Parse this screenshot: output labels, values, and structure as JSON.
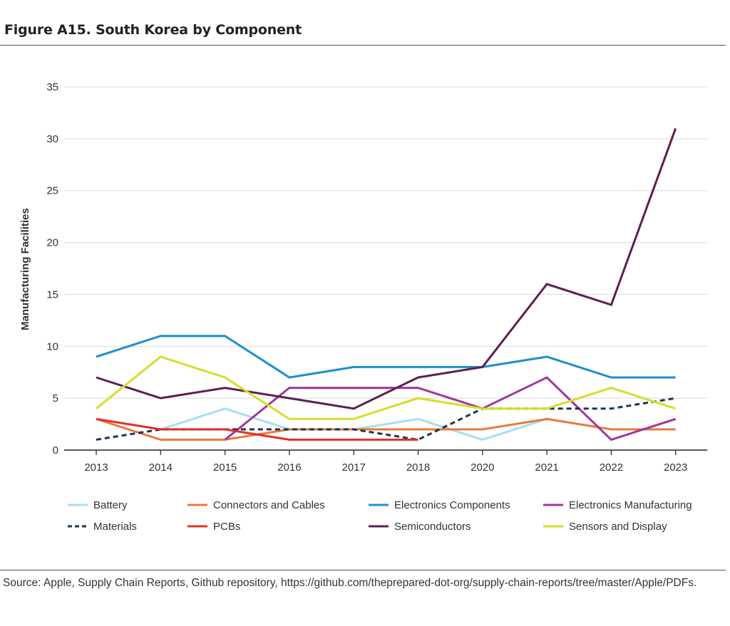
{
  "figure": {
    "title": "Figure A15. South Korea by Component",
    "source": "Source: Apple, Supply Chain Reports, Github repository, https://github.com/theprepared-dot-org/supply-chain-reports/tree/master/Apple/PDFs."
  },
  "chart_data": {
    "type": "line",
    "title": "Figure A15. South Korea by Component",
    "xlabel": "",
    "ylabel": "Manufacturing Facilities",
    "categories": [
      "2013",
      "2014",
      "2015",
      "2016",
      "2017",
      "2018",
      "2020",
      "2021",
      "2022",
      "2023"
    ],
    "yticks": [
      0,
      5,
      10,
      15,
      20,
      25,
      30,
      35
    ],
    "ylim": [
      0,
      35
    ],
    "grid": "horizontal",
    "legend_position": "bottom",
    "series": [
      {
        "name": "Battery",
        "color": "#a9dcf3",
        "dashed": false,
        "values": [
          3,
          2,
          4,
          2,
          2,
          3,
          1,
          3,
          null,
          null
        ]
      },
      {
        "name": "Connectors and Cables",
        "color": "#e87a3c",
        "dashed": false,
        "values": [
          3,
          1,
          1,
          2,
          2,
          2,
          2,
          3,
          2,
          2
        ]
      },
      {
        "name": "Electronics Components",
        "color": "#1c8fcf",
        "dashed": false,
        "values": [
          9,
          11,
          11,
          7,
          8,
          8,
          8,
          9,
          7,
          7
        ]
      },
      {
        "name": "Electronics Manufacturing",
        "color": "#a3359a",
        "dashed": false,
        "values": [
          null,
          null,
          1,
          6,
          6,
          6,
          4,
          7,
          1,
          3
        ]
      },
      {
        "name": "Materials",
        "color": "#1c3552",
        "dashed": true,
        "values": [
          1,
          2,
          2,
          2,
          2,
          1,
          4,
          4,
          4,
          5
        ]
      },
      {
        "name": "PCBs",
        "color": "#e0302a",
        "dashed": false,
        "values": [
          3,
          2,
          2,
          1,
          1,
          1,
          null,
          null,
          null,
          null
        ]
      },
      {
        "name": "Semiconductors",
        "color": "#5c1f4f",
        "dashed": false,
        "values": [
          7,
          5,
          6,
          5,
          4,
          7,
          8,
          16,
          14,
          31
        ]
      },
      {
        "name": "Sensors and Display",
        "color": "#d4de2c",
        "dashed": false,
        "values": [
          4,
          9,
          7,
          3,
          3,
          5,
          4,
          4,
          6,
          4
        ]
      }
    ]
  }
}
